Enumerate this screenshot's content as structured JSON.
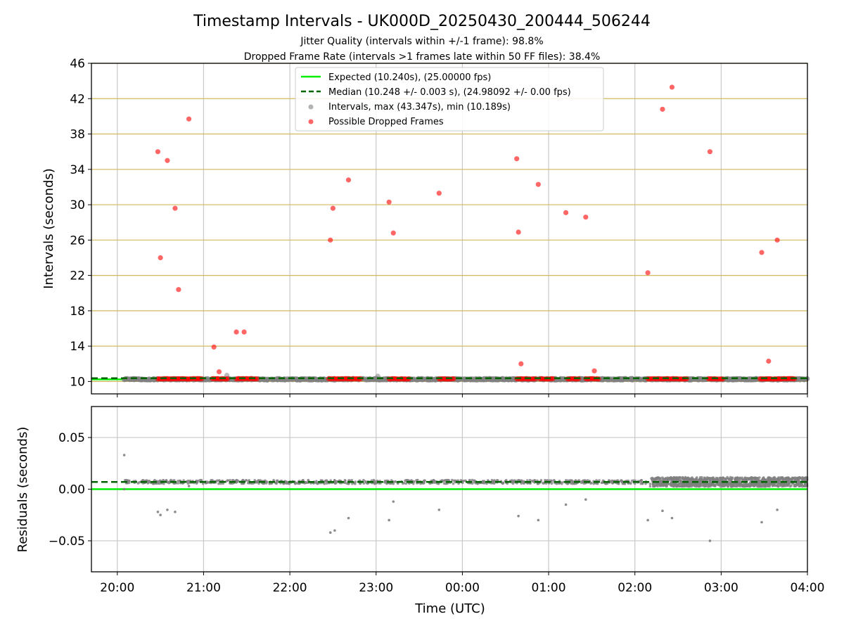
{
  "chart_data": [
    {
      "type": "scatter",
      "title": "Timestamp Intervals - UK000D_20250430_200444_506244",
      "subtitle_lines": [
        "Jitter Quality (intervals within +/-1 frame): 98.8%",
        "Dropped Frame Rate (intervals >1 frames late within 50 FF files): 38.4%"
      ],
      "xlabel": "",
      "ylabel": "Intervals (seconds)",
      "x_unit": "hours after 20:00 UTC",
      "xlim": [
        -0.3,
        8.0
      ],
      "ylim": [
        8.6,
        46
      ],
      "yticks": [
        10,
        14,
        18,
        22,
        26,
        30,
        34,
        38,
        42,
        46
      ],
      "xticks": [
        0,
        1,
        2,
        3,
        4,
        5,
        6,
        7,
        8
      ],
      "xtick_labels": [
        "20:00",
        "21:00",
        "22:00",
        "23:00",
        "00:00",
        "01:00",
        "02:00",
        "03:00",
        "04:00"
      ],
      "grid": true,
      "legend_position": "top-center",
      "colors": {
        "expected": "#00ee00",
        "median": "#006400",
        "intervals": "#808080",
        "dropped": "#ff0000",
        "hgrid": "#d4b95c",
        "vgrid": "#c8c8c8"
      },
      "series": [
        {
          "name": "Expected (10.240s), (25.00000 fps)",
          "kind": "hline",
          "y": 10.24
        },
        {
          "name": "Median (10.248 +/- 0.003 s), (24.98092 +/- 0.00 fps)",
          "kind": "hline-dashed",
          "y": 10.248
        },
        {
          "name": "Intervals, max (43.347s), min (10.189s)",
          "kind": "points",
          "x_range": [
            0.08,
            8.0
          ],
          "y_base": 10.25,
          "outliers": [
            [
              1.27,
              10.7
            ],
            [
              3.02,
              10.6
            ],
            [
              0.08,
              10.2
            ]
          ]
        },
        {
          "name": "Possible Dropped Frames",
          "kind": "points",
          "points": [
            [
              0.47,
              36.0
            ],
            [
              0.5,
              24.0
            ],
            [
              0.58,
              35.0
            ],
            [
              0.67,
              29.6
            ],
            [
              0.71,
              20.4
            ],
            [
              0.83,
              39.7
            ],
            [
              1.12,
              13.9
            ],
            [
              1.18,
              11.1
            ],
            [
              1.38,
              15.6
            ],
            [
              1.47,
              15.6
            ],
            [
              2.47,
              26.0
            ],
            [
              2.5,
              29.6
            ],
            [
              2.68,
              32.8
            ],
            [
              3.15,
              30.3
            ],
            [
              3.2,
              26.8
            ],
            [
              3.73,
              31.3
            ],
            [
              4.63,
              35.2
            ],
            [
              4.65,
              26.9
            ],
            [
              4.68,
              12.0
            ],
            [
              4.88,
              32.3
            ],
            [
              5.2,
              29.1
            ],
            [
              5.43,
              28.6
            ],
            [
              5.53,
              11.2
            ],
            [
              6.15,
              22.3
            ],
            [
              6.32,
              40.8
            ],
            [
              6.43,
              43.3
            ],
            [
              6.87,
              36.0
            ],
            [
              7.47,
              24.6
            ],
            [
              7.55,
              12.3
            ],
            [
              7.65,
              26.0
            ]
          ],
          "clusters": [
            [
              0.47,
              0.98
            ],
            [
              1.1,
              1.28
            ],
            [
              1.38,
              1.62
            ],
            [
              2.45,
              2.82
            ],
            [
              3.15,
              3.38
            ],
            [
              3.73,
              3.9
            ],
            [
              4.63,
              4.85
            ],
            [
              4.9,
              5.05
            ],
            [
              5.22,
              5.35
            ],
            [
              5.43,
              5.58
            ],
            [
              6.15,
              6.3
            ],
            [
              6.32,
              6.6
            ],
            [
              6.85,
              7.02
            ],
            [
              7.45,
              7.85
            ]
          ]
        }
      ]
    },
    {
      "type": "scatter",
      "title": "",
      "xlabel": "Time (UTC)",
      "ylabel": "Residuals (seconds)",
      "xlim": [
        -0.3,
        8.0
      ],
      "ylim": [
        -0.08,
        0.08
      ],
      "yticks": [
        0.05,
        0.0,
        -0.05
      ],
      "ytick_labels": [
        "0.05",
        "0.00",
        "−0.05"
      ],
      "grid": true,
      "series": [
        {
          "name": "Expected",
          "kind": "hline",
          "y": 0.0
        },
        {
          "name": "Median",
          "kind": "hline-dashed",
          "y": 0.007
        },
        {
          "name": "Residuals",
          "kind": "points",
          "y_base": 0.007,
          "outliers": [
            [
              0.08,
              0.033
            ],
            [
              0.08,
              0.0
            ],
            [
              0.47,
              -0.022
            ],
            [
              0.5,
              -0.025
            ],
            [
              0.58,
              -0.02
            ],
            [
              0.67,
              -0.022
            ],
            [
              0.83,
              0.003
            ],
            [
              2.47,
              -0.042
            ],
            [
              2.52,
              -0.04
            ],
            [
              2.68,
              -0.028
            ],
            [
              3.15,
              -0.03
            ],
            [
              3.2,
              -0.012
            ],
            [
              3.73,
              -0.02
            ],
            [
              4.65,
              -0.026
            ],
            [
              4.88,
              -0.03
            ],
            [
              5.2,
              -0.015
            ],
            [
              5.43,
              -0.01
            ],
            [
              6.15,
              -0.03
            ],
            [
              6.32,
              -0.021
            ],
            [
              6.43,
              -0.028
            ],
            [
              6.87,
              -0.05
            ],
            [
              7.47,
              -0.032
            ],
            [
              7.65,
              -0.02
            ]
          ],
          "dense_range": [
            6.15,
            8.0
          ]
        }
      ]
    }
  ]
}
